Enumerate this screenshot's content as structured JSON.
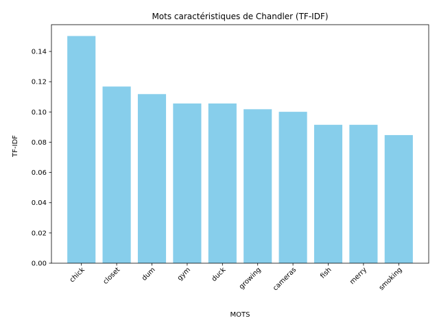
{
  "chart_data": {
    "type": "bar",
    "title": "Mots caractéristiques de Chandler (TF-IDF)",
    "xlabel": "MOTS",
    "ylabel": "TF-IDF",
    "categories": [
      "chick",
      "closet",
      "dum",
      "gym",
      "duck",
      "growing",
      "cameras",
      "fish",
      "merry",
      "smoking"
    ],
    "values": [
      0.1502,
      0.1168,
      0.1118,
      0.1056,
      0.1056,
      0.1018,
      0.1001,
      0.0915,
      0.0915,
      0.0847
    ],
    "ylim": [
      0,
      0.1577
    ],
    "yticks": [
      0.0,
      0.02,
      0.04,
      0.06,
      0.08,
      0.1,
      0.12,
      0.14
    ],
    "ytick_labels": [
      "0.00",
      "0.02",
      "0.04",
      "0.06",
      "0.08",
      "0.10",
      "0.12",
      "0.14"
    ],
    "bar_color": "#87ceeb",
    "grid": false,
    "legend": "none"
  }
}
